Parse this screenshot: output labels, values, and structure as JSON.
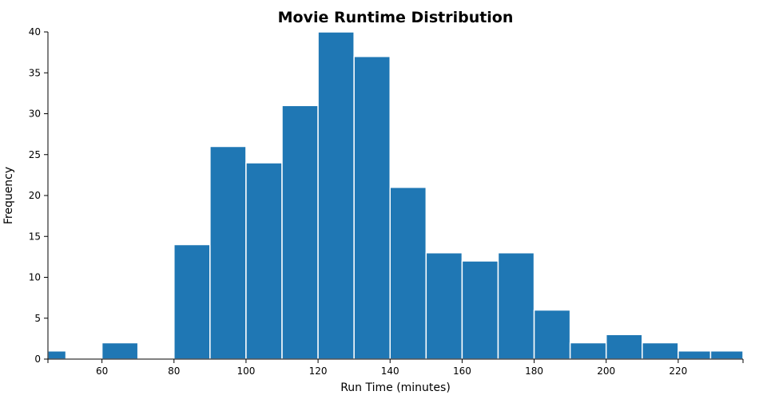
{
  "chart_data": {
    "type": "histogram",
    "title": "Movie Runtime Distribution",
    "xlabel": "Run Time (minutes)",
    "ylabel": "Frequency",
    "xlim": [
      45,
      238
    ],
    "ylim": [
      0,
      40
    ],
    "x_ticks": [
      60,
      80,
      100,
      120,
      140,
      160,
      180,
      200,
      220
    ],
    "y_ticks": [
      0,
      5,
      10,
      15,
      20,
      25,
      30,
      35,
      40
    ],
    "bar_color": "#1f77b4",
    "bins": [
      {
        "x0": 45,
        "x1": 50,
        "count": 1
      },
      {
        "x0": 60,
        "x1": 70,
        "count": 2
      },
      {
        "x0": 80,
        "x1": 90,
        "count": 14
      },
      {
        "x0": 90,
        "x1": 100,
        "count": 26
      },
      {
        "x0": 100,
        "x1": 110,
        "count": 24
      },
      {
        "x0": 110,
        "x1": 120,
        "count": 31
      },
      {
        "x0": 120,
        "x1": 130,
        "count": 40
      },
      {
        "x0": 130,
        "x1": 140,
        "count": 37
      },
      {
        "x0": 140,
        "x1": 150,
        "count": 21
      },
      {
        "x0": 150,
        "x1": 160,
        "count": 13
      },
      {
        "x0": 160,
        "x1": 170,
        "count": 12
      },
      {
        "x0": 170,
        "x1": 180,
        "count": 13
      },
      {
        "x0": 180,
        "x1": 190,
        "count": 6
      },
      {
        "x0": 190,
        "x1": 200,
        "count": 2
      },
      {
        "x0": 200,
        "x1": 210,
        "count": 3
      },
      {
        "x0": 210,
        "x1": 220,
        "count": 2
      },
      {
        "x0": 220,
        "x1": 229,
        "count": 1
      },
      {
        "x0": 229,
        "x1": 238,
        "count": 1
      }
    ],
    "grid": false
  }
}
